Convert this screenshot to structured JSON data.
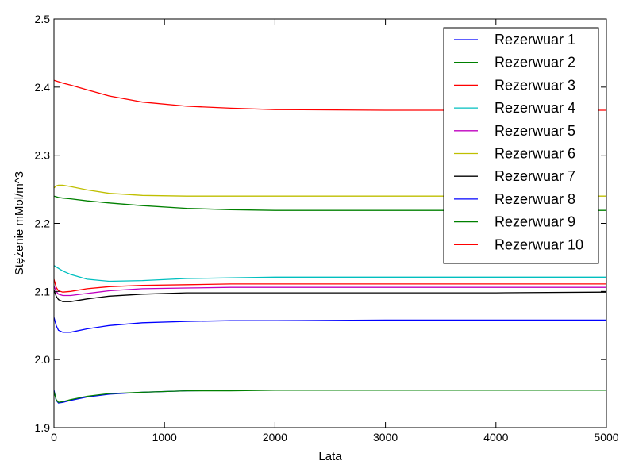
{
  "chart_data": {
    "type": "line",
    "title": "",
    "xlabel": "Lata",
    "ylabel": "Stężenie mMol/m^3",
    "xlim": [
      0,
      5000
    ],
    "ylim": [
      1.9,
      2.5
    ],
    "xticks": [
      "0",
      "1000",
      "2000",
      "3000",
      "4000",
      "5000"
    ],
    "yticks": [
      "1.9",
      "2.0",
      "2.1",
      "2.2",
      "2.3",
      "2.4",
      "2.5"
    ],
    "grid": false,
    "legend_position": "top-right",
    "series": [
      {
        "name": "Rezerwuar 1",
        "color": "#0000ff",
        "x": [
          0,
          20,
          40,
          80,
          150,
          300,
          500,
          800,
          1200,
          1600,
          2000,
          3000,
          4000,
          5000
        ],
        "y": [
          1.955,
          1.94,
          1.936,
          1.937,
          1.94,
          1.945,
          1.949,
          1.952,
          1.954,
          1.955,
          1.955,
          1.955,
          1.955,
          1.955
        ]
      },
      {
        "name": "Rezerwuar 2",
        "color": "#008000",
        "x": [
          0,
          20,
          40,
          80,
          150,
          300,
          500,
          800,
          1200,
          1600,
          2000,
          3000,
          4000,
          5000
        ],
        "y": [
          2.24,
          2.239,
          2.238,
          2.237,
          2.236,
          2.233,
          2.23,
          2.226,
          2.222,
          2.22,
          2.219,
          2.219,
          2.219,
          2.219
        ]
      },
      {
        "name": "Rezerwuar 3",
        "color": "#ff0000",
        "x": [
          0,
          20,
          40,
          80,
          150,
          300,
          500,
          800,
          1200,
          1600,
          2000,
          3000,
          4000,
          5000
        ],
        "y": [
          2.41,
          2.409,
          2.408,
          2.406,
          2.403,
          2.396,
          2.387,
          2.378,
          2.372,
          2.369,
          2.367,
          2.366,
          2.366,
          2.366
        ]
      },
      {
        "name": "Rezerwuar 4",
        "color": "#00bfbf",
        "x": [
          0,
          20,
          40,
          80,
          150,
          300,
          500,
          800,
          1200,
          1600,
          2000,
          3000,
          4000,
          5000
        ],
        "y": [
          2.138,
          2.136,
          2.134,
          2.13,
          2.125,
          2.118,
          2.115,
          2.116,
          2.119,
          2.12,
          2.121,
          2.121,
          2.121,
          2.121
        ]
      },
      {
        "name": "Rezerwuar 5",
        "color": "#bf00bf",
        "x": [
          0,
          20,
          40,
          80,
          150,
          300,
          500,
          800,
          1200,
          1600,
          2000,
          3000,
          4000,
          5000
        ],
        "y": [
          2.108,
          2.1,
          2.096,
          2.094,
          2.094,
          2.097,
          2.101,
          2.104,
          2.105,
          2.106,
          2.106,
          2.106,
          2.106,
          2.106
        ]
      },
      {
        "name": "Rezerwuar 6",
        "color": "#bfbf00",
        "x": [
          0,
          20,
          40,
          80,
          150,
          300,
          500,
          800,
          1200,
          1600,
          2000,
          3000,
          4000,
          5000
        ],
        "y": [
          2.252,
          2.255,
          2.256,
          2.256,
          2.254,
          2.249,
          2.244,
          2.241,
          2.24,
          2.24,
          2.24,
          2.24,
          2.24,
          2.24
        ]
      },
      {
        "name": "Rezerwuar 7",
        "color": "#000000",
        "x": [
          0,
          20,
          40,
          80,
          150,
          300,
          500,
          800,
          1200,
          1600,
          2000,
          3000,
          4000,
          5000
        ],
        "y": [
          2.102,
          2.093,
          2.088,
          2.085,
          2.085,
          2.089,
          2.093,
          2.096,
          2.098,
          2.098,
          2.098,
          2.098,
          2.098,
          2.099
        ]
      },
      {
        "name": "Rezerwuar 8",
        "color": "#0000ff",
        "x": [
          0,
          20,
          40,
          80,
          150,
          300,
          500,
          800,
          1200,
          1600,
          2000,
          3000,
          4000,
          5000
        ],
        "y": [
          2.062,
          2.05,
          2.043,
          2.04,
          2.04,
          2.045,
          2.05,
          2.054,
          2.056,
          2.057,
          2.057,
          2.058,
          2.058,
          2.058
        ]
      },
      {
        "name": "Rezerwuar 9",
        "color": "#008000",
        "x": [
          0,
          20,
          40,
          80,
          150,
          300,
          500,
          800,
          1200,
          1600,
          2000,
          3000,
          4000,
          5000
        ],
        "y": [
          1.953,
          1.941,
          1.937,
          1.938,
          1.941,
          1.946,
          1.95,
          1.952,
          1.954,
          1.954,
          1.955,
          1.955,
          1.955,
          1.955
        ]
      },
      {
        "name": "Rezerwuar 10",
        "color": "#ff0000",
        "x": [
          0,
          20,
          40,
          80,
          150,
          300,
          500,
          800,
          1200,
          1600,
          2000,
          3000,
          4000,
          5000
        ],
        "y": [
          2.118,
          2.106,
          2.101,
          2.099,
          2.1,
          2.104,
          2.107,
          2.109,
          2.11,
          2.111,
          2.111,
          2.111,
          2.111,
          2.111
        ]
      }
    ]
  }
}
